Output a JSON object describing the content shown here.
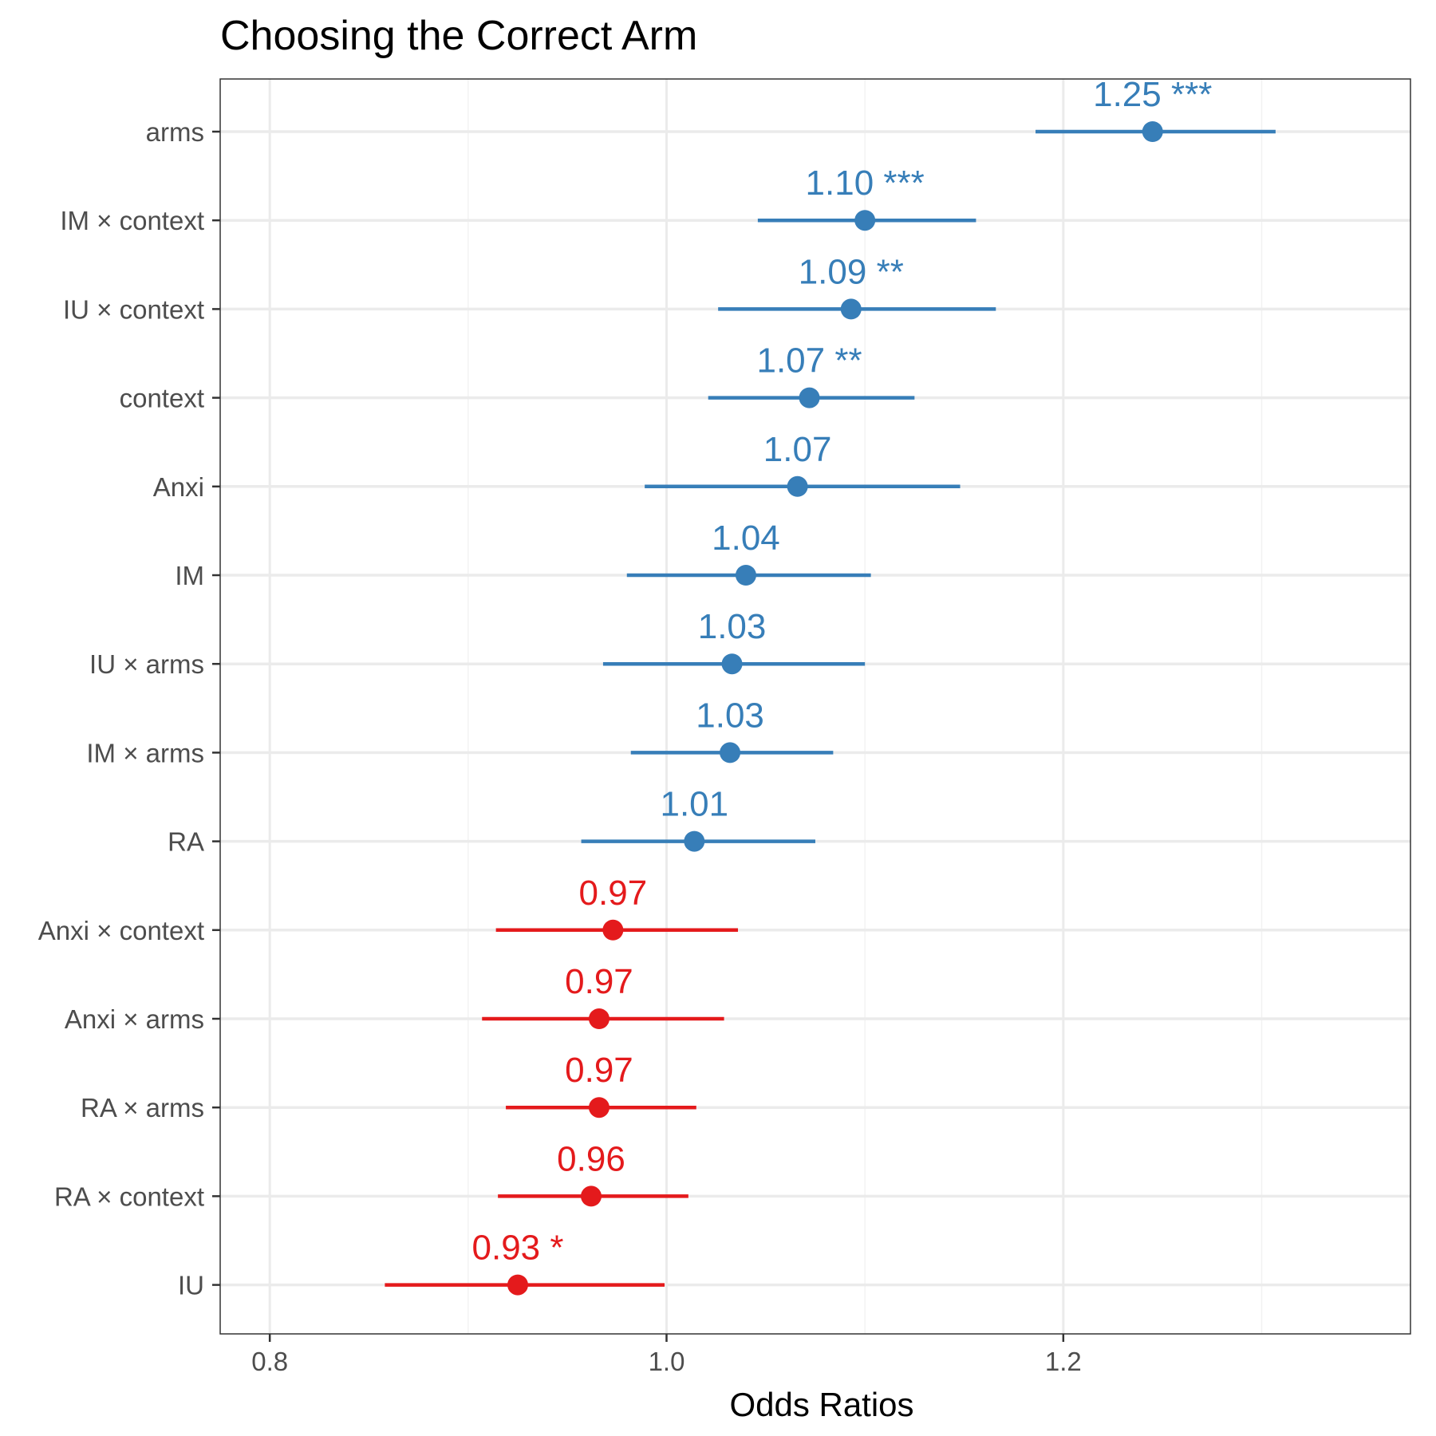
{
  "chart_data": {
    "type": "forest",
    "title": "Choosing the Correct Arm",
    "xlabel": "Odds Ratios",
    "ylabel": "",
    "xlim": [
      0.775,
      1.375
    ],
    "xticks": [
      0.8,
      1.0,
      1.2
    ],
    "xtick_labels": [
      "0.8",
      "1.0",
      "1.2"
    ],
    "grid": true,
    "colors": {
      "positive": "#377EB8",
      "negative": "#E41A1C"
    },
    "rows": [
      {
        "term": "arms",
        "estimate": 1.245,
        "ci_low": 1.186,
        "ci_high": 1.307,
        "label": "1.25 ***",
        "direction": "positive"
      },
      {
        "term": "IM × context",
        "estimate": 1.1,
        "ci_low": 1.046,
        "ci_high": 1.156,
        "label": "1.10 ***",
        "direction": "positive"
      },
      {
        "term": "IU × context",
        "estimate": 1.093,
        "ci_low": 1.026,
        "ci_high": 1.166,
        "label": "1.09 **",
        "direction": "positive"
      },
      {
        "term": "context",
        "estimate": 1.072,
        "ci_low": 1.021,
        "ci_high": 1.125,
        "label": "1.07 **",
        "direction": "positive"
      },
      {
        "term": "Anxi",
        "estimate": 1.066,
        "ci_low": 0.989,
        "ci_high": 1.148,
        "label": "1.07",
        "direction": "positive"
      },
      {
        "term": "IM",
        "estimate": 1.04,
        "ci_low": 0.98,
        "ci_high": 1.103,
        "label": "1.04",
        "direction": "positive"
      },
      {
        "term": "IU × arms",
        "estimate": 1.033,
        "ci_low": 0.968,
        "ci_high": 1.1,
        "label": "1.03",
        "direction": "positive"
      },
      {
        "term": "IM × arms",
        "estimate": 1.032,
        "ci_low": 0.982,
        "ci_high": 1.084,
        "label": "1.03",
        "direction": "positive"
      },
      {
        "term": "RA",
        "estimate": 1.014,
        "ci_low": 0.957,
        "ci_high": 1.075,
        "label": "1.01",
        "direction": "positive"
      },
      {
        "term": "Anxi × context",
        "estimate": 0.973,
        "ci_low": 0.914,
        "ci_high": 1.036,
        "label": "0.97",
        "direction": "negative"
      },
      {
        "term": "Anxi × arms",
        "estimate": 0.966,
        "ci_low": 0.907,
        "ci_high": 1.029,
        "label": "0.97",
        "direction": "negative"
      },
      {
        "term": "RA × arms",
        "estimate": 0.966,
        "ci_low": 0.919,
        "ci_high": 1.015,
        "label": "0.97",
        "direction": "negative"
      },
      {
        "term": "RA × context",
        "estimate": 0.962,
        "ci_low": 0.915,
        "ci_high": 1.011,
        "label": "0.96",
        "direction": "negative"
      },
      {
        "term": "IU",
        "estimate": 0.925,
        "ci_low": 0.858,
        "ci_high": 0.999,
        "label": "0.93 *",
        "direction": "negative"
      }
    ]
  }
}
